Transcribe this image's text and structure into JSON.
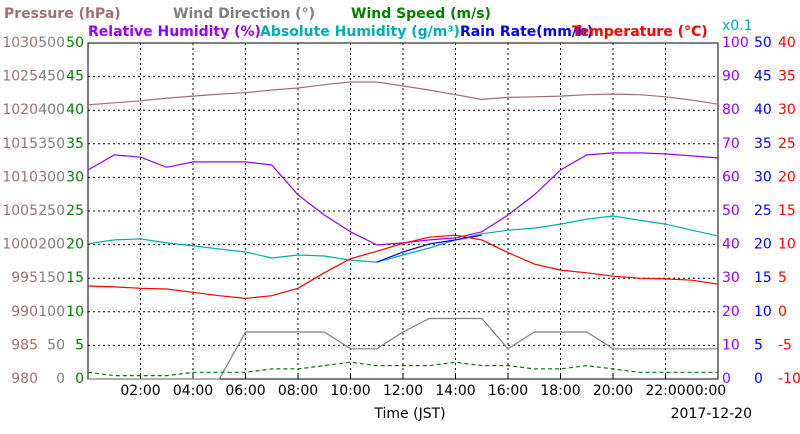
{
  "chart_data": {
    "type": "line",
    "x_label": "Time (JST)",
    "date_label": "2017-12-20",
    "x": [
      0,
      1,
      2,
      3,
      4,
      5,
      6,
      7,
      8,
      9,
      10,
      11,
      12,
      13,
      14,
      15,
      16,
      17,
      18,
      19,
      20,
      21,
      22,
      23,
      24
    ],
    "xlim": [
      0,
      24
    ],
    "xticks": [
      {
        "value": 2,
        "label": "02:00"
      },
      {
        "value": 4,
        "label": "04:00"
      },
      {
        "value": 6,
        "label": "06:00"
      },
      {
        "value": 8,
        "label": "08:00"
      },
      {
        "value": 10,
        "label": "10:00"
      },
      {
        "value": 12,
        "label": "12:00"
      },
      {
        "value": 14,
        "label": "14:00"
      },
      {
        "value": 16,
        "label": "16:00"
      },
      {
        "value": 18,
        "label": "18:00"
      },
      {
        "value": 20,
        "label": "20:00"
      },
      {
        "value": 22,
        "label": "22:00"
      },
      {
        "value": 24,
        "label": "00:00"
      }
    ],
    "grid": true,
    "axes": [
      {
        "side": "left",
        "color": "#a07070",
        "ylim": [
          980,
          1030
        ],
        "yticks": [
          980,
          985,
          990,
          995,
          1000,
          1005,
          1010,
          1015,
          1020,
          1025,
          1030
        ]
      },
      {
        "side": "left",
        "color": "#808080",
        "ylim": [
          0,
          500
        ],
        "yticks": [
          0,
          50,
          100,
          150,
          200,
          250,
          300,
          350,
          400,
          450,
          500
        ]
      },
      {
        "side": "left",
        "color": "#008000",
        "ylim": [
          0,
          50
        ],
        "yticks": [
          0,
          5,
          10,
          15,
          20,
          25,
          30,
          35,
          40,
          45,
          50
        ]
      },
      {
        "side": "right",
        "color": "#9900ff",
        "ylim": [
          0,
          100
        ],
        "yticks": [
          0,
          10,
          20,
          30,
          40,
          50,
          60,
          70,
          80,
          90,
          100
        ]
      },
      {
        "side": "right",
        "color": "#00b0b0",
        "ylim": [
          0,
          10
        ],
        "note": "x0.1"
      },
      {
        "side": "right",
        "color": "#0000ff",
        "ylim": [
          0,
          50
        ],
        "yticks": [
          0,
          5,
          10,
          15,
          20,
          25,
          30,
          35,
          40,
          45,
          50
        ]
      },
      {
        "side": "right",
        "color": "#ff0000",
        "ylim": [
          -10,
          40
        ],
        "yticks": [
          -10,
          -5,
          0,
          5,
          10,
          15,
          20,
          25,
          30,
          35,
          40
        ]
      }
    ],
    "series": [
      {
        "name": "Pressure (hPa)",
        "color": "#a07070",
        "axis": 0,
        "values": [
          1020.8,
          1021.1,
          1021.4,
          1021.8,
          1022.1,
          1022.4,
          1022.6,
          1023.0,
          1023.3,
          1023.8,
          1024.2,
          1024.2,
          1023.6,
          1023.0,
          1022.3,
          1021.6,
          1021.9,
          1022.0,
          1022.1,
          1022.3,
          1022.4,
          1022.3,
          1022.0,
          1021.5,
          1020.9
        ]
      },
      {
        "name": "Wind Direction (°)",
        "color": "#808080",
        "axis": 1,
        "values": [
          0,
          0,
          0,
          0,
          0,
          0,
          70,
          70,
          70,
          70,
          45,
          45,
          70,
          90,
          90,
          90,
          45,
          70,
          70,
          70,
          45,
          45,
          45,
          45,
          45
        ]
      },
      {
        "name": "Wind Speed (m/s)",
        "color": "#008000",
        "axis": 2,
        "style": "dashed",
        "values": [
          1,
          0.5,
          0.5,
          0.5,
          1,
          1,
          1,
          1.5,
          1.5,
          2,
          2.5,
          2,
          2,
          2,
          2.5,
          2,
          2,
          1.5,
          1.5,
          2,
          1.5,
          1,
          1,
          1,
          1
        ]
      },
      {
        "name": "Relative Humidity (%)",
        "color": "#9900ff",
        "axis": 3,
        "values": [
          62.2,
          66.7,
          66,
          63,
          64.6,
          64.6,
          64.6,
          63.7,
          54.8,
          48.8,
          43.8,
          39.9,
          40.5,
          41.4,
          42,
          43.8,
          48.8,
          54.8,
          62.2,
          66.7,
          67.3,
          67.3,
          67,
          66.4,
          65.8
        ]
      },
      {
        "name": "Absolute Humidity (g/m³)",
        "color": "#00b0b0",
        "axis": 4,
        "values": [
          4.02,
          4.14,
          4.17,
          4.05,
          3.96,
          3.87,
          3.78,
          3.6,
          3.69,
          3.66,
          3.54,
          3.48,
          3.69,
          3.9,
          4.14,
          4.32,
          4.43,
          4.49,
          4.61,
          4.76,
          4.85,
          4.73,
          4.61,
          4.43,
          4.26
        ]
      },
      {
        "name": "Rain Rate(mm/h)",
        "color": "#0000ff",
        "axis": 5,
        "values": [
          null,
          null,
          null,
          null,
          null,
          null,
          null,
          null,
          null,
          null,
          null,
          17.4,
          18.9,
          20.1,
          20.7,
          21.4,
          null,
          null,
          null,
          null,
          null,
          null,
          null,
          null,
          null
        ]
      },
      {
        "name": "Temperature (°C)",
        "color": "#ff0000",
        "axis": 6,
        "values": [
          3.84,
          3.7,
          3.5,
          3.4,
          2.9,
          2.4,
          2.0,
          2.4,
          3.5,
          5.8,
          7.9,
          9.0,
          10.2,
          11.1,
          11.4,
          10.7,
          8.8,
          7.1,
          6.2,
          5.8,
          5.3,
          5.0,
          4.9,
          4.7,
          4.1
        ]
      }
    ]
  }
}
